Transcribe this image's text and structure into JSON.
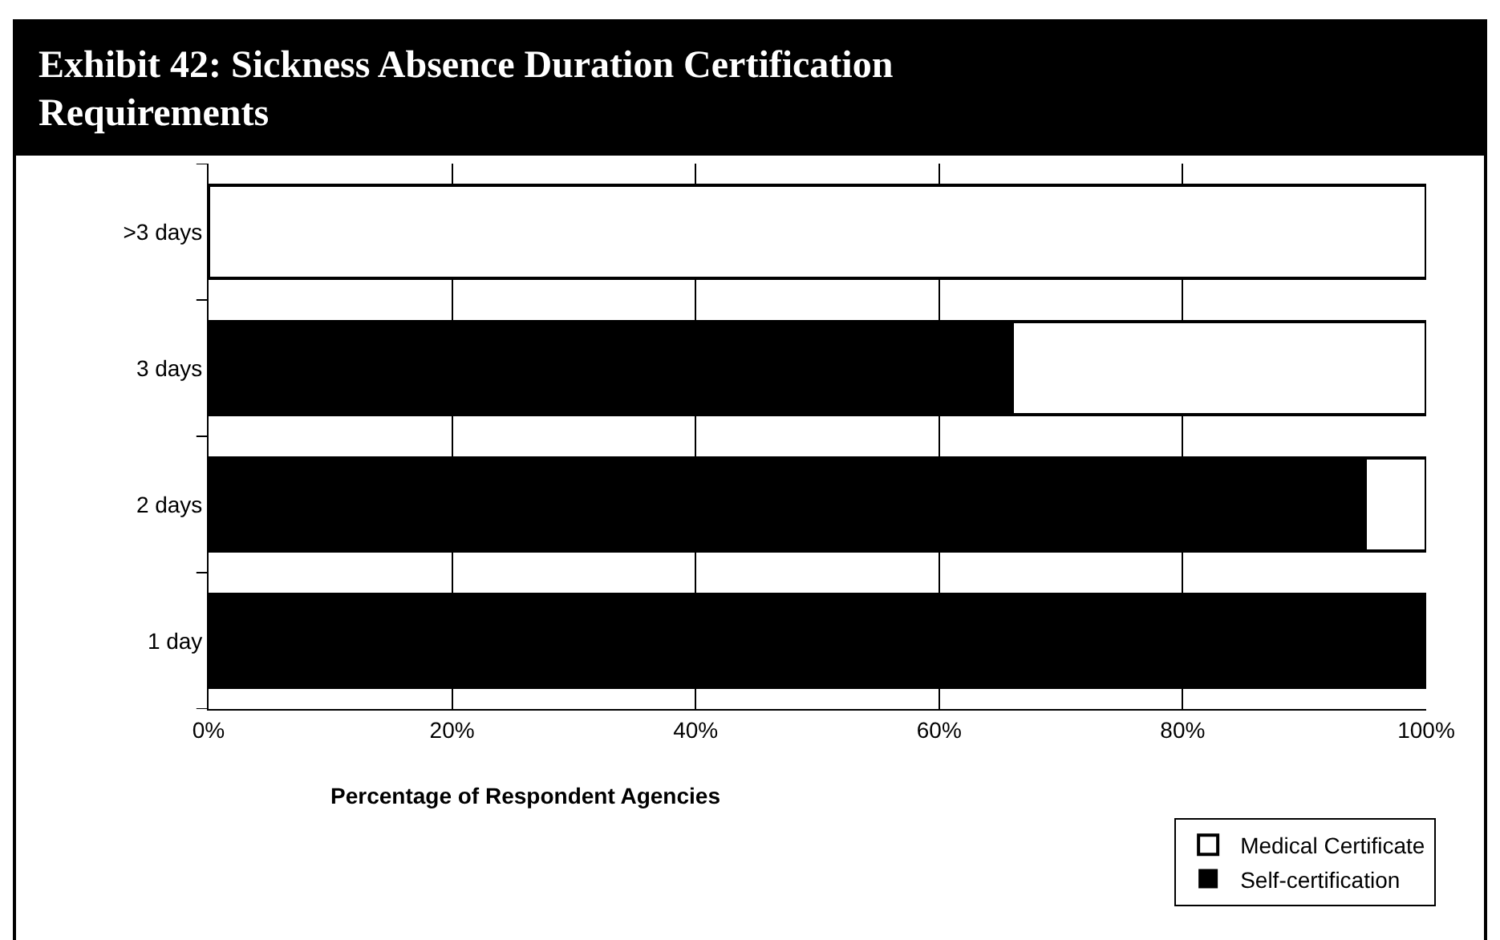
{
  "chart_data": {
    "type": "bar",
    "orientation": "horizontal",
    "stacked": true,
    "title": "Exhibit 42: Sickness Absence Duration Certification Requirements",
    "xlabel": "Percentage of Respondent Agencies",
    "categories": [
      ">3 days",
      "3 days",
      "2 days",
      "1 day"
    ],
    "series": [
      {
        "name": "Self-certification",
        "color": "#000000",
        "values": [
          0,
          66,
          95,
          100
        ]
      },
      {
        "name": "Medical Certificate",
        "color": "#ffffff",
        "values": [
          100,
          34,
          5,
          0
        ]
      }
    ],
    "xlim": [
      0,
      100
    ],
    "xticks": [
      {
        "value": 0,
        "label": "0%"
      },
      {
        "value": 20,
        "label": "20%"
      },
      {
        "value": 40,
        "label": "40%"
      },
      {
        "value": 60,
        "label": "60%"
      },
      {
        "value": 80,
        "label": "80%"
      },
      {
        "value": 100,
        "label": "100%"
      }
    ],
    "grid": "x",
    "legend": "bottom right"
  }
}
